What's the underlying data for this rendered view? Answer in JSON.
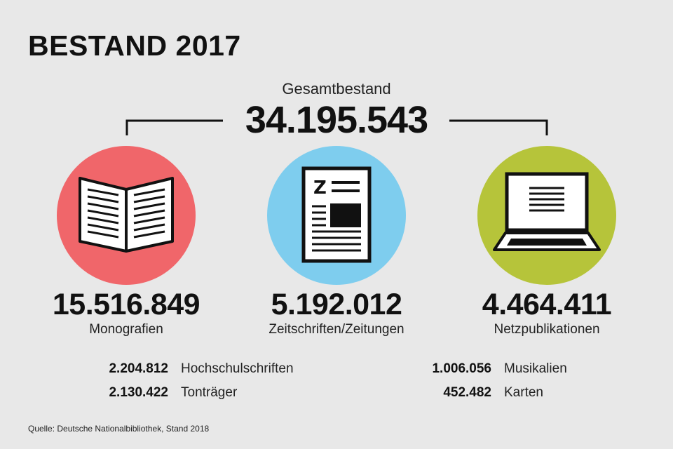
{
  "title": "BESTAND 2017",
  "total": {
    "label": "Gesamtbestand",
    "value": "34.195.543"
  },
  "categories": [
    {
      "value": "15.516.849",
      "label": "Monografien",
      "color": "#f0666a",
      "icon": "open-book-icon"
    },
    {
      "value": "5.192.012",
      "label": "Zeitschriften/Zeitungen",
      "color": "#7ecdee",
      "icon": "newspaper-icon"
    },
    {
      "value": "4.464.411",
      "label": "Netzpublikationen",
      "color": "#b6c43a",
      "icon": "laptop-icon"
    }
  ],
  "sub_items": [
    {
      "value": "2.204.812",
      "label": "Hochschulschriften"
    },
    {
      "value": "2.130.422",
      "label": "Tonträger"
    },
    {
      "value": "1.006.056",
      "label": "Musikalien"
    },
    {
      "value": "452.482",
      "label": "Karten"
    }
  ],
  "source": "Quelle: Deutsche Nationalbibliothek, Stand 2018"
}
